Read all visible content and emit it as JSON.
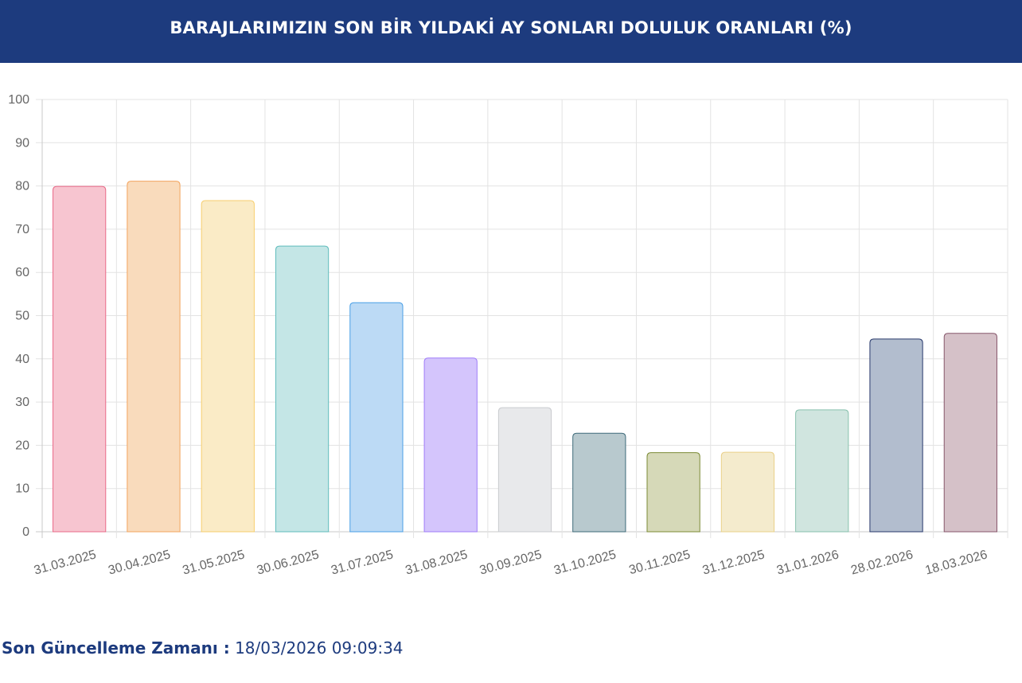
{
  "header": {
    "title": "BARAJLARIMIZIN SON BİR YILDAKİ AY SONLARI DOLULUK ORANLARI (%)"
  },
  "footer": {
    "label": "Son Güncelleme Zamanı :",
    "value": "18/03/2026 09:09:34"
  },
  "chart_data": {
    "type": "bar",
    "title": "BARAJLARIMIZIN SON BİR YILDAKİ AY SONLARI DOLULUK ORANLARI (%)",
    "xlabel": "",
    "ylabel": "",
    "ylim": [
      0,
      100
    ],
    "yticks": [
      0,
      10,
      20,
      30,
      40,
      50,
      60,
      70,
      80,
      90,
      100
    ],
    "grid": true,
    "categories": [
      "31.03.2025",
      "30.04.2025",
      "31.05.2025",
      "30.06.2025",
      "31.07.2025",
      "31.08.2025",
      "30.09.2025",
      "31.10.2025",
      "30.11.2025",
      "31.12.2025",
      "31.01.2026",
      "28.02.2026",
      "18.03.2026"
    ],
    "values": [
      79.9,
      81.1,
      76.6,
      66.1,
      53.0,
      40.2,
      28.7,
      22.8,
      18.3,
      18.4,
      28.2,
      44.6,
      45.9
    ],
    "colors": {
      "fill": [
        "#f7c5d0",
        "#f9dbbc",
        "#faebc6",
        "#c4e6e6",
        "#bcdaf5",
        "#d4c5fc",
        "#e8e9eb",
        "#b8c9ce",
        "#d6d9b8",
        "#f4ebcd",
        "#d0e5df",
        "#b2bdce",
        "#d5c1c8"
      ],
      "border": [
        "#e96a88",
        "#f3a45e",
        "#f7ce6c",
        "#5fbcbc",
        "#4a9fe6",
        "#9f7cf9",
        "#c9cbcf",
        "#3f6b7a",
        "#7c8b36",
        "#e9d089",
        "#87c1ad",
        "#27386b",
        "#86566b"
      ]
    }
  }
}
